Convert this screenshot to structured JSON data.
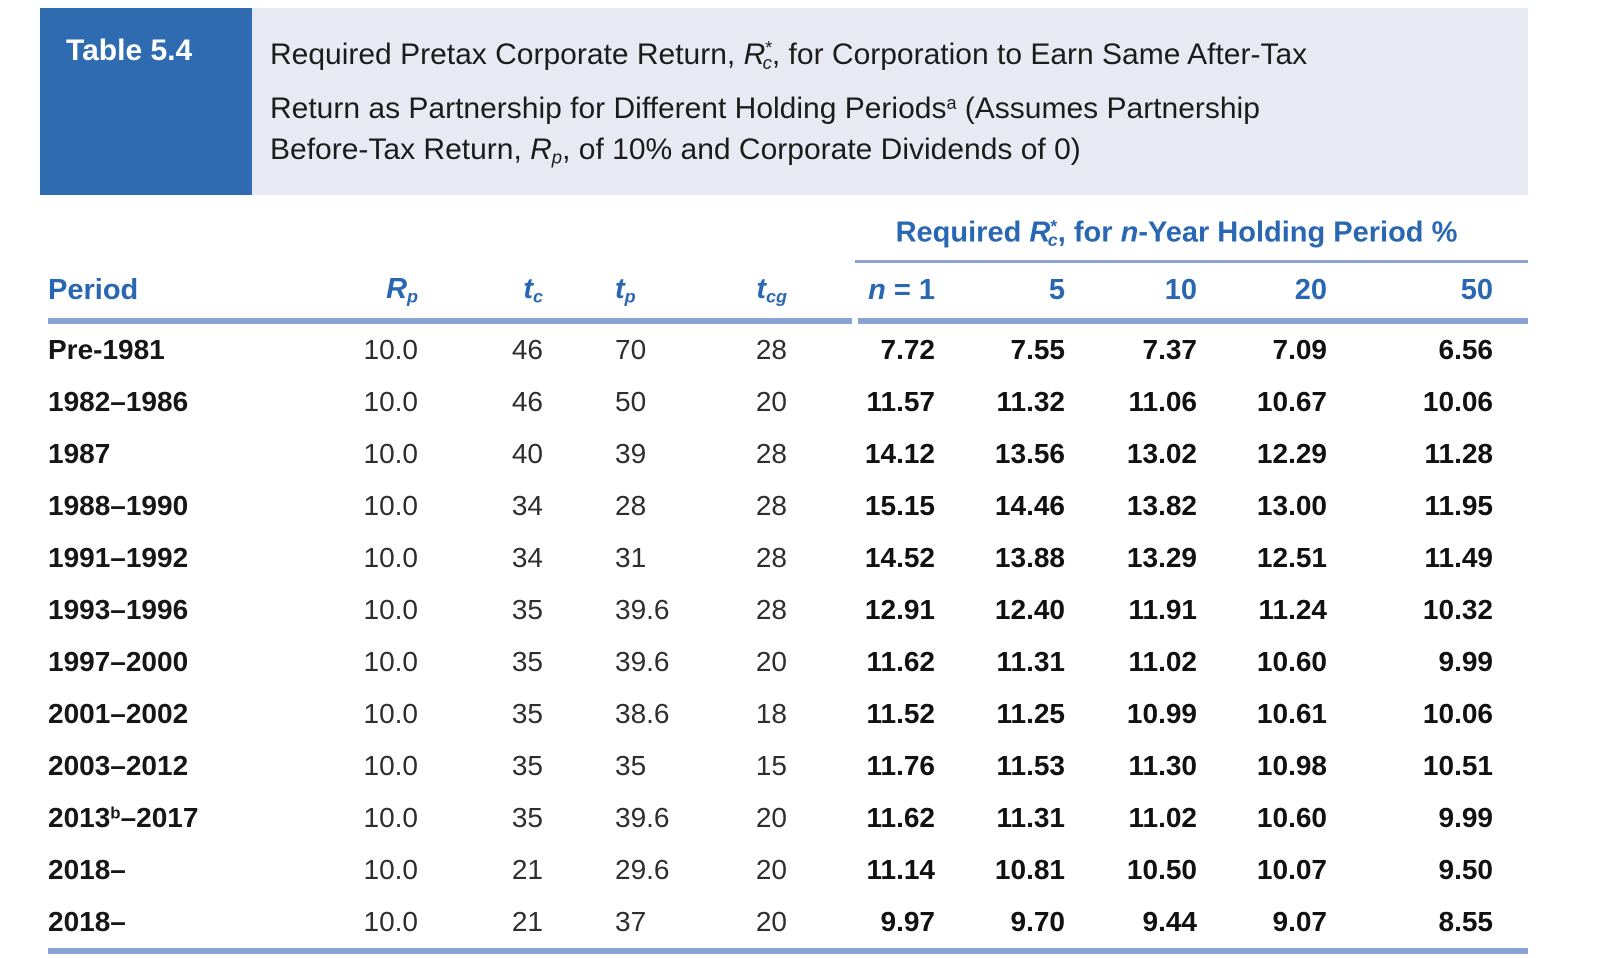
{
  "colors": {
    "header_box_blue": "#2f6bb1",
    "title_band_lavender": "#e8eaf3",
    "heading_text_blue": "#2a67b2",
    "rule_blue": "#8aa2d4"
  },
  "table_label": "Table 5.4",
  "title": {
    "line1_pre": "Required Pretax Corporate Return, ",
    "line1_var": "R",
    "line1_sup": "*",
    "line1_sub": "c",
    "line1_post": ", for Corporation to Earn Same After-Tax",
    "line2_pre": "Return as Partnership for Different Holding Periods",
    "line2_sup": "a",
    "line2_post": " (Assumes Partnership",
    "line3_pre": "Before-Tax Return, ",
    "line3_var": "R",
    "line3_sub": "p",
    "line3_post": ", of 10% and Corporate Dividends of 0)"
  },
  "group_header": {
    "s1": "Required ",
    "var": "R",
    "sup": "*",
    "sub": "c",
    "s2": ", for ",
    "nvar": "n",
    "s3": "-Year Holding Period %"
  },
  "columns": {
    "period": "Period",
    "rp_base": "R",
    "rp_sub": "p",
    "tc_base": "t",
    "tc_sub": "c",
    "tp_base": "t",
    "tp_sub": "p",
    "tcg_base": "t",
    "tcg_sub": "cg",
    "n1_var": "n",
    "n1_eq": " = 1",
    "n5": "5",
    "n10": "10",
    "n20": "20",
    "n50": "50"
  },
  "rows": [
    {
      "period_pre": "Pre-1981",
      "period_sup": "",
      "period_post": "",
      "rp": "10.0",
      "tc": "46",
      "tp": "70",
      "tcg": "28",
      "n1": "7.72",
      "n5": "7.55",
      "n10": "7.37",
      "n20": "7.09",
      "n50": "6.56"
    },
    {
      "period_pre": "1982–1986",
      "period_sup": "",
      "period_post": "",
      "rp": "10.0",
      "tc": "46",
      "tp": "50",
      "tcg": "20",
      "n1": "11.57",
      "n5": "11.32",
      "n10": "11.06",
      "n20": "10.67",
      "n50": "10.06"
    },
    {
      "period_pre": "1987",
      "period_sup": "",
      "period_post": "",
      "rp": "10.0",
      "tc": "40",
      "tp": "39",
      "tcg": "28",
      "n1": "14.12",
      "n5": "13.56",
      "n10": "13.02",
      "n20": "12.29",
      "n50": "11.28"
    },
    {
      "period_pre": "1988–1990",
      "period_sup": "",
      "period_post": "",
      "rp": "10.0",
      "tc": "34",
      "tp": "28",
      "tcg": "28",
      "n1": "15.15",
      "n5": "14.46",
      "n10": "13.82",
      "n20": "13.00",
      "n50": "11.95"
    },
    {
      "period_pre": "1991–1992",
      "period_sup": "",
      "period_post": "",
      "rp": "10.0",
      "tc": "34",
      "tp": "31",
      "tcg": "28",
      "n1": "14.52",
      "n5": "13.88",
      "n10": "13.29",
      "n20": "12.51",
      "n50": "11.49"
    },
    {
      "period_pre": "1993–1996",
      "period_sup": "",
      "period_post": "",
      "rp": "10.0",
      "tc": "35",
      "tp": "39.6",
      "tcg": "28",
      "n1": "12.91",
      "n5": "12.40",
      "n10": "11.91",
      "n20": "11.24",
      "n50": "10.32"
    },
    {
      "period_pre": "1997–2000",
      "period_sup": "",
      "period_post": "",
      "rp": "10.0",
      "tc": "35",
      "tp": "39.6",
      "tcg": "20",
      "n1": "11.62",
      "n5": "11.31",
      "n10": "11.02",
      "n20": "10.60",
      "n50": "9.99"
    },
    {
      "period_pre": "2001–2002",
      "period_sup": "",
      "period_post": "",
      "rp": "10.0",
      "tc": "35",
      "tp": "38.6",
      "tcg": "18",
      "n1": "11.52",
      "n5": "11.25",
      "n10": "10.99",
      "n20": "10.61",
      "n50": "10.06"
    },
    {
      "period_pre": "2003–2012",
      "period_sup": "",
      "period_post": "",
      "rp": "10.0",
      "tc": "35",
      "tp": "35",
      "tcg": "15",
      "n1": "11.76",
      "n5": "11.53",
      "n10": "11.30",
      "n20": "10.98",
      "n50": "10.51"
    },
    {
      "period_pre": "2013",
      "period_sup": "b",
      "period_post": "–2017",
      "rp": "10.0",
      "tc": "35",
      "tp": "39.6",
      "tcg": "20",
      "n1": "11.62",
      "n5": "11.31",
      "n10": "11.02",
      "n20": "10.60",
      "n50": "9.99"
    },
    {
      "period_pre": "2018–",
      "period_sup": "",
      "period_post": "",
      "rp": "10.0",
      "tc": "21",
      "tp": "29.6",
      "tcg": "20",
      "n1": "11.14",
      "n5": "10.81",
      "n10": "10.50",
      "n20": "10.07",
      "n50": "9.50"
    },
    {
      "period_pre": "2018–",
      "period_sup": "",
      "period_post": "",
      "rp": "10.0",
      "tc": "21",
      "tp": "37",
      "tcg": "20",
      "n1": "9.97",
      "n5": "9.70",
      "n10": "9.44",
      "n20": "9.07",
      "n50": "8.55"
    }
  ]
}
